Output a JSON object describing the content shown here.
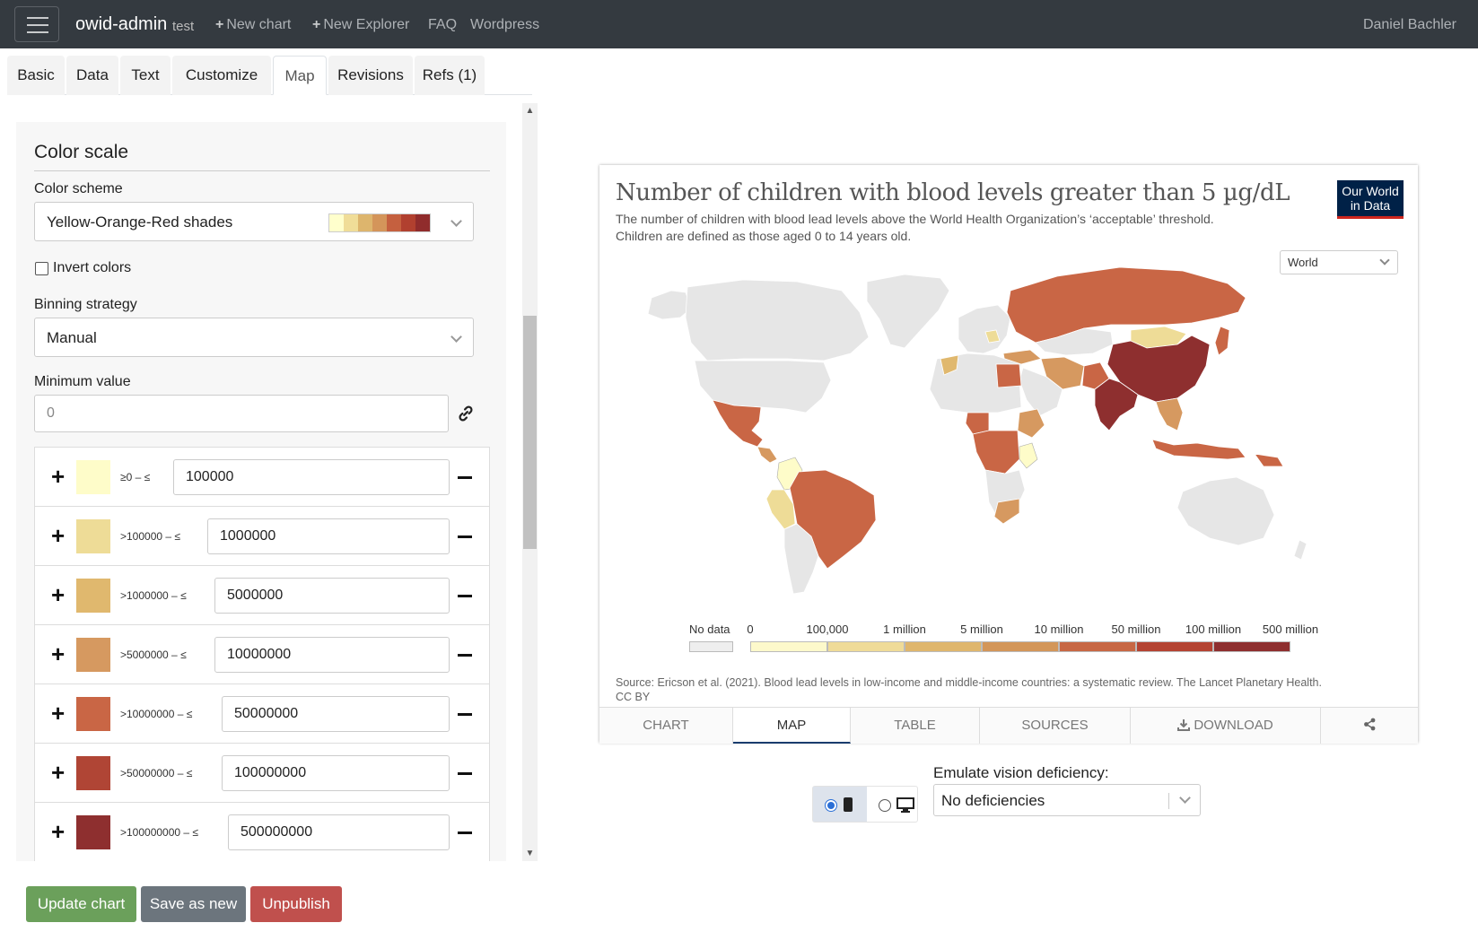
{
  "nav": {
    "brand": "owid-admin",
    "env": "test",
    "links": [
      {
        "label": "New chart",
        "plus": true
      },
      {
        "label": "New Explorer",
        "plus": true
      },
      {
        "label": "FAQ",
        "plus": false
      },
      {
        "label": "Wordpress",
        "plus": false
      }
    ],
    "user": "Daniel Bachler"
  },
  "editor_tabs": [
    "Basic",
    "Data",
    "Text",
    "Customize",
    "Map",
    "Revisions",
    "Refs (1)"
  ],
  "active_editor_tab": "Map",
  "color_scale": {
    "section_title": "Color scale",
    "scheme_label": "Color scheme",
    "scheme_value": "Yellow-Orange-Red shades",
    "scheme_colors": [
      "#ffffcc",
      "#f0dd98",
      "#ddb56d",
      "#d4955a",
      "#c5603f",
      "#b1402f",
      "#902c2c"
    ],
    "invert_label": "Invert colors",
    "invert_checked": false,
    "binning_label": "Binning strategy",
    "binning_value": "Manual",
    "min_label": "Minimum value",
    "min_value": "0",
    "bins": [
      {
        "range": "≥0 – ≤",
        "value": "100000",
        "color": "#fefcc9"
      },
      {
        "range": ">100000 – ≤",
        "value": "1000000",
        "color": "#eedc97"
      },
      {
        "range": ">1000000 – ≤",
        "value": "5000000",
        "color": "#e0b86e"
      },
      {
        "range": ">5000000 – ≤",
        "value": "10000000",
        "color": "#d69960"
      },
      {
        "range": ">10000000 – ≤",
        "value": "50000000",
        "color": "#c96645"
      },
      {
        "range": ">50000000 – ≤",
        "value": "100000000",
        "color": "#b04535"
      },
      {
        "range": ">100000000 – ≤",
        "value": "500000000",
        "color": "#8e2f2f"
      }
    ]
  },
  "actions": {
    "update": "Update chart",
    "save_new": "Save as new",
    "unpublish": "Unpublish"
  },
  "chart": {
    "title": "Number of children with blood levels greater than 5 µg/dL",
    "subtitle_line1": "The number of children with blood lead levels above the World Health Organization’s ‘acceptable’ threshold.",
    "subtitle_line2": "Children are defined as those aged 0 to 14 years old.",
    "logo_line1": "Our World",
    "logo_line2": "in Data",
    "region": "World",
    "legend": {
      "no_data": "No data",
      "labels": [
        "0",
        "100,000",
        "1 million",
        "5 million",
        "10 million",
        "50 million",
        "100 million",
        "500 million"
      ],
      "colors": [
        "#fdf9cb",
        "#efdb98",
        "#dfb66d",
        "#d39659",
        "#c76744",
        "#b44332",
        "#8e2f2f"
      ],
      "no_data_color": "#eeeeee"
    },
    "source_line1": "Source: Ericson et al. (2021). Blood lead levels in low-income and middle-income countries: a systematic review. The Lancet Planetary Health.",
    "source_line2": "CC BY",
    "tabs": [
      "CHART",
      "MAP",
      "TABLE",
      "SOURCES",
      "DOWNLOAD"
    ],
    "active_tab": "MAP"
  },
  "vision": {
    "label": "Emulate vision deficiency:",
    "value": "No deficiencies"
  }
}
